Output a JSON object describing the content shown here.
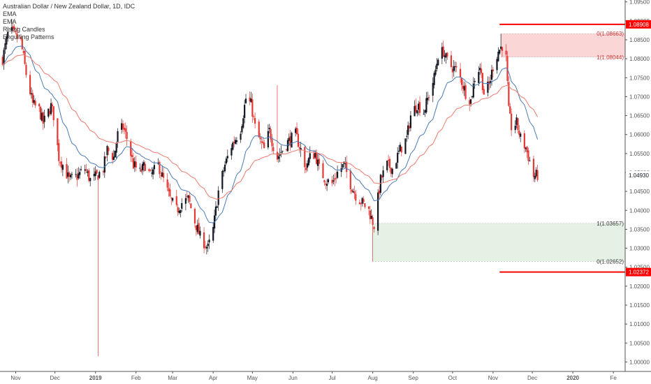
{
  "legend": {
    "title": "Australian Dollar / New Zealand Dollar, 1D, IDC",
    "lines": [
      "EMA",
      "EMA",
      "Rising Candles",
      "Engulfing Patterns"
    ]
  },
  "colors": {
    "bull": "#131722",
    "bear": "#e53935",
    "ema_fast": "#4a7bb7",
    "ema_slow": "#f07a6e",
    "level": "#ff0000",
    "upper_zone": "#f8c8c8",
    "lower_zone": "#dcecdc",
    "axis_text": "#555555"
  },
  "chart_data": {
    "type": "candlestick",
    "title": "Australian Dollar / New Zealand Dollar, 1D, IDC",
    "x_range": [
      "2018-10-20",
      "2020-02-10"
    ],
    "ylim": [
      0.9975,
      1.0955
    ],
    "y_ticks": [
      "1.09500",
      "1.09000",
      "1.08500",
      "1.08000",
      "1.07500",
      "1.07000",
      "1.06500",
      "1.06000",
      "1.05500",
      "1.05000",
      "1.04500",
      "1.04000",
      "1.03500",
      "1.03000",
      "1.02500",
      "1.02000",
      "1.01500",
      "1.01000",
      "1.00500",
      "1.00000"
    ],
    "x_ticks": [
      {
        "label": "Nov",
        "date": "2018-11-01"
      },
      {
        "label": "Dec",
        "date": "2018-12-01"
      },
      {
        "label": "2019",
        "date": "2019-01-01"
      },
      {
        "label": "Feb",
        "date": "2019-02-01"
      },
      {
        "label": "Mar",
        "date": "2019-03-01"
      },
      {
        "label": "Apr",
        "date": "2019-04-01"
      },
      {
        "label": "May",
        "date": "2019-05-01"
      },
      {
        "label": "Jun",
        "date": "2019-06-01"
      },
      {
        "label": "Jul",
        "date": "2019-07-01"
      },
      {
        "label": "Aug",
        "date": "2019-08-01"
      },
      {
        "label": "Sep",
        "date": "2019-09-01"
      },
      {
        "label": "Oct",
        "date": "2019-10-01"
      },
      {
        "label": "Nov",
        "date": "2019-11-01"
      },
      {
        "label": "Dec",
        "date": "2019-12-01"
      },
      {
        "label": "2020",
        "date": "2020-01-01"
      },
      {
        "label": "Fe",
        "date": "2020-02-01"
      }
    ],
    "last_price": {
      "label": "1.04930",
      "value": 1.0493
    },
    "levels": [
      {
        "label": "1.08908",
        "value": 1.08908,
        "from": "2019-11-06",
        "to": "2020-02-10"
      },
      {
        "label": "1.02372",
        "value": 1.02372,
        "from": "2019-11-06",
        "to": "2020-02-10"
      }
    ],
    "zones": [
      {
        "name": "upper",
        "from": "2019-11-07",
        "to": "2020-02-10",
        "top": 1.08663,
        "bottom": 1.08044,
        "label_top": "0(1.08663)",
        "label_bottom": "1(1.08044)"
      },
      {
        "name": "lower",
        "from": "2019-08-01",
        "to": "2020-02-10",
        "top": 1.03657,
        "bottom": 1.02652,
        "label_top": "1(1.03657)",
        "label_bottom": "0(1.02652)"
      }
    ],
    "anchors": [
      [
        "2018-10-22",
        1.08
      ],
      [
        "2018-10-26",
        1.0865
      ],
      [
        "2018-10-29",
        1.087
      ],
      [
        "2018-11-02",
        1.0855
      ],
      [
        "2018-11-05",
        1.0845
      ],
      [
        "2018-11-09",
        1.076
      ],
      [
        "2018-11-14",
        1.068
      ],
      [
        "2018-11-19",
        1.0665
      ],
      [
        "2018-11-22",
        1.063
      ],
      [
        "2018-11-28",
        1.0675
      ],
      [
        "2018-11-30",
        1.065
      ],
      [
        "2018-12-04",
        1.054
      ],
      [
        "2018-12-07",
        1.052
      ],
      [
        "2018-12-12",
        1.048
      ],
      [
        "2018-12-18",
        1.049
      ],
      [
        "2018-12-24",
        1.051
      ],
      [
        "2018-12-28",
        1.048
      ],
      [
        "2019-01-02",
        1.049
      ],
      [
        "2019-01-07",
        1.051
      ],
      [
        "2019-01-10",
        1.056
      ],
      [
        "2019-01-15",
        1.054
      ],
      [
        "2019-01-18",
        1.06
      ],
      [
        "2019-01-22",
        1.062
      ],
      [
        "2019-01-25",
        1.059
      ],
      [
        "2019-01-30",
        1.052
      ],
      [
        "2019-02-04",
        1.05
      ],
      [
        "2019-02-08",
        1.052
      ],
      [
        "2019-02-12",
        1.049
      ],
      [
        "2019-02-18",
        1.052
      ],
      [
        "2019-02-22",
        1.048
      ],
      [
        "2019-02-27",
        1.043
      ],
      [
        "2019-03-04",
        1.04
      ],
      [
        "2019-03-08",
        1.042
      ],
      [
        "2019-03-13",
        1.043
      ],
      [
        "2019-03-18",
        1.037
      ],
      [
        "2019-03-22",
        1.033
      ],
      [
        "2019-03-25",
        1.0315
      ],
      [
        "2019-03-28",
        1.03
      ],
      [
        "2019-04-01",
        1.035
      ],
      [
        "2019-04-05",
        1.045
      ],
      [
        "2019-04-10",
        1.052
      ],
      [
        "2019-04-15",
        1.057
      ],
      [
        "2019-04-22",
        1.0615
      ],
      [
        "2019-04-26",
        1.0695
      ],
      [
        "2019-04-30",
        1.068
      ],
      [
        "2019-05-03",
        1.062
      ],
      [
        "2019-05-07",
        1.058
      ],
      [
        "2019-05-10",
        1.056
      ],
      [
        "2019-05-14",
        1.061
      ],
      [
        "2019-05-17",
        1.057
      ],
      [
        "2019-05-20",
        1.054
      ],
      [
        "2019-05-24",
        1.056
      ],
      [
        "2019-05-28",
        1.058
      ],
      [
        "2019-06-03",
        1.06
      ],
      [
        "2019-06-07",
        1.056
      ],
      [
        "2019-06-10",
        1.051
      ],
      [
        "2019-06-14",
        1.054
      ],
      [
        "2019-06-18",
        1.055
      ],
      [
        "2019-06-21",
        1.051
      ],
      [
        "2019-06-26",
        1.048
      ],
      [
        "2019-07-01",
        1.047
      ],
      [
        "2019-07-05",
        1.05
      ],
      [
        "2019-07-10",
        1.052
      ],
      [
        "2019-07-15",
        1.047
      ],
      [
        "2019-07-19",
        1.044
      ],
      [
        "2019-07-24",
        1.042
      ],
      [
        "2019-07-29",
        1.04
      ],
      [
        "2019-08-02",
        1.036
      ],
      [
        "2019-08-07",
        1.048
      ],
      [
        "2019-08-12",
        1.052
      ],
      [
        "2019-08-16",
        1.051
      ],
      [
        "2019-08-22",
        1.056
      ],
      [
        "2019-08-27",
        1.059
      ],
      [
        "2019-08-30",
        1.065
      ],
      [
        "2019-09-04",
        1.068
      ],
      [
        "2019-09-09",
        1.066
      ],
      [
        "2019-09-13",
        1.0705
      ],
      [
        "2019-09-17",
        1.075
      ],
      [
        "2019-09-20",
        1.081
      ],
      [
        "2019-09-24",
        1.082
      ],
      [
        "2019-09-26",
        1.08
      ],
      [
        "2019-09-30",
        1.078
      ],
      [
        "2019-10-04",
        1.077
      ],
      [
        "2019-10-08",
        1.074
      ],
      [
        "2019-10-11",
        1.071
      ],
      [
        "2019-10-15",
        1.069
      ],
      [
        "2019-10-18",
        1.075
      ],
      [
        "2019-10-22",
        1.078
      ],
      [
        "2019-10-25",
        1.071
      ],
      [
        "2019-10-29",
        1.073
      ],
      [
        "2019-11-01",
        1.078
      ],
      [
        "2019-11-05",
        1.082
      ],
      [
        "2019-11-08",
        1.0835
      ],
      [
        "2019-11-11",
        1.08
      ],
      [
        "2019-11-13",
        1.066
      ],
      [
        "2019-11-15",
        1.062
      ],
      [
        "2019-11-19",
        1.063
      ],
      [
        "2019-11-22",
        1.059
      ],
      [
        "2019-11-26",
        1.0565
      ],
      [
        "2019-11-29",
        1.053
      ],
      [
        "2019-12-02",
        1.049
      ],
      [
        "2019-12-05",
        1.0493
      ]
    ]
  }
}
